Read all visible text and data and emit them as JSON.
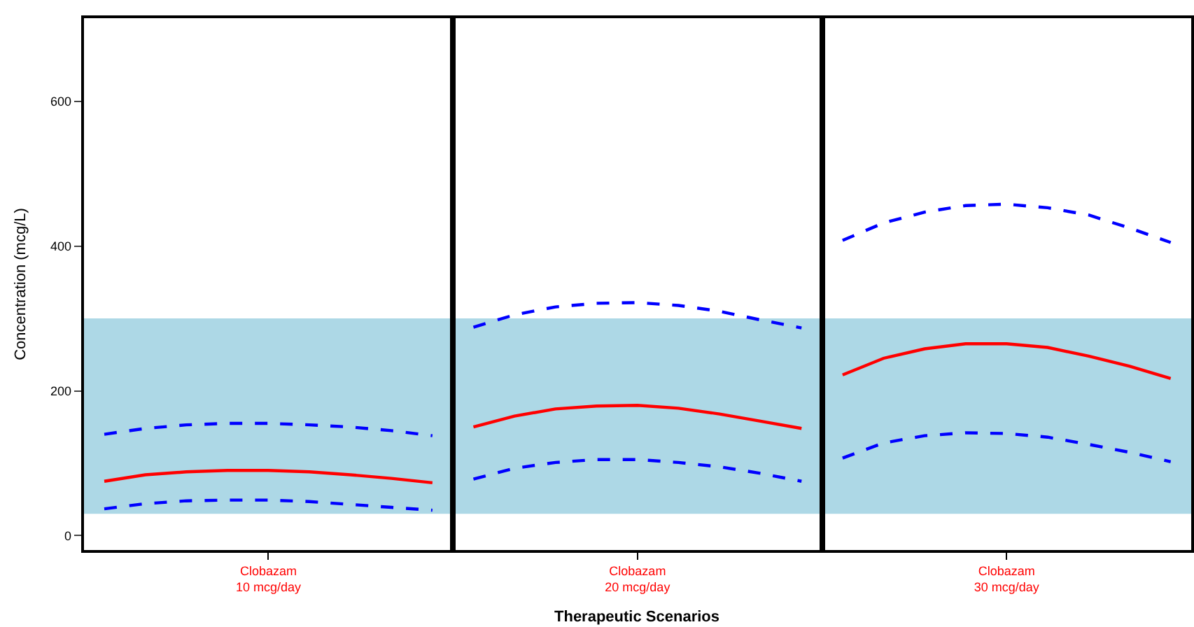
{
  "chart_data": {
    "type": "line",
    "xlabel": "Therapeutic Scenarios",
    "ylabel": "Concentration (mcg/L)",
    "categories": [
      null,
      null,
      null,
      null,
      "Clobazam\n10 mcg/day",
      null,
      null,
      null,
      null,
      null,
      null,
      null,
      null,
      "Clobazam\n20 mcg/day",
      null,
      null,
      null,
      null,
      null,
      null,
      null,
      null,
      "Clobazam\n30 mcg/day",
      null,
      null,
      null,
      null
    ],
    "ylim": [
      -20,
      715
    ],
    "yticks": [
      0,
      200,
      400,
      600
    ],
    "grid": false,
    "marker": "none",
    "bands": [
      {
        "axis": "y",
        "from": 30,
        "to": 300,
        "color": "#add8e6"
      }
    ],
    "series": [
      {
        "color": "#0000ff",
        "line_style": "dashed",
        "values": [
          140,
          148,
          153,
          155,
          155,
          153,
          150,
          145,
          138,
          null,
          null,
          null,
          null,
          null,
          null,
          null,
          null,
          null,
          null,
          null,
          null,
          null,
          null,
          null,
          null,
          null,
          null
        ]
      },
      {
        "color": "#ff0000",
        "line_style": "solid",
        "values": [
          75,
          84,
          88,
          90,
          90,
          88,
          84,
          79,
          73,
          null,
          null,
          null,
          null,
          null,
          null,
          null,
          null,
          null,
          null,
          null,
          null,
          null,
          null,
          null,
          null,
          null,
          null
        ]
      },
      {
        "color": "#0000ff",
        "line_style": "dashed",
        "values": [
          37,
          44,
          48,
          49,
          49,
          47,
          43,
          39,
          35,
          null,
          null,
          null,
          null,
          null,
          null,
          null,
          null,
          null,
          null,
          null,
          null,
          null,
          null,
          null,
          null,
          null,
          null
        ]
      },
      {
        "color": "#0000ff",
        "line_style": "dashed",
        "values": [
          null,
          null,
          null,
          null,
          null,
          null,
          null,
          null,
          null,
          288,
          305,
          316,
          321,
          322,
          318,
          310,
          298,
          287,
          null,
          null,
          null,
          null,
          null,
          null,
          null,
          null,
          null
        ]
      },
      {
        "color": "#ff0000",
        "line_style": "solid",
        "values": [
          null,
          null,
          null,
          null,
          null,
          null,
          null,
          null,
          null,
          150,
          165,
          175,
          179,
          180,
          176,
          168,
          158,
          148,
          null,
          null,
          null,
          null,
          null,
          null,
          null,
          null,
          null
        ]
      },
      {
        "color": "#0000ff",
        "line_style": "dashed",
        "values": [
          null,
          null,
          null,
          null,
          null,
          null,
          null,
          null,
          null,
          78,
          93,
          101,
          105,
          105,
          101,
          95,
          86,
          75,
          null,
          null,
          null,
          null,
          null,
          null,
          null,
          null,
          null
        ]
      },
      {
        "color": "#0000ff",
        "line_style": "dashed",
        "values": [
          null,
          null,
          null,
          null,
          null,
          null,
          null,
          null,
          null,
          null,
          null,
          null,
          null,
          null,
          null,
          null,
          null,
          null,
          408,
          432,
          447,
          456,
          458,
          453,
          443,
          425,
          405
        ]
      },
      {
        "color": "#ff0000",
        "line_style": "solid",
        "values": [
          null,
          null,
          null,
          null,
          null,
          null,
          null,
          null,
          null,
          null,
          null,
          null,
          null,
          null,
          null,
          null,
          null,
          null,
          222,
          245,
          258,
          265,
          265,
          260,
          248,
          234,
          217
        ]
      },
      {
        "color": "#0000ff",
        "line_style": "dashed",
        "values": [
          null,
          null,
          null,
          null,
          null,
          null,
          null,
          null,
          null,
          null,
          null,
          null,
          null,
          null,
          null,
          null,
          null,
          null,
          107,
          128,
          138,
          142,
          141,
          136,
          126,
          115,
          102
        ]
      }
    ]
  }
}
